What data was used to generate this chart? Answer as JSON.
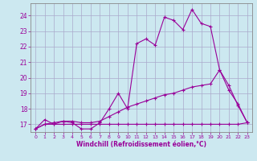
{
  "line1_x": [
    0,
    1,
    2,
    3,
    4,
    5,
    6,
    7,
    8,
    9,
    10,
    11,
    12,
    13,
    14,
    15,
    16,
    17,
    18,
    19,
    20,
    21,
    22,
    23
  ],
  "line1_y": [
    16.7,
    17.3,
    17.0,
    17.2,
    17.1,
    16.7,
    16.7,
    17.1,
    18.0,
    19.0,
    18.0,
    22.2,
    22.5,
    22.1,
    23.9,
    23.7,
    23.1,
    24.4,
    23.5,
    23.3,
    20.5,
    19.5,
    18.2,
    17.1
  ],
  "line2_x": [
    0,
    1,
    2,
    3,
    4,
    5,
    6,
    7,
    8,
    9,
    10,
    11,
    12,
    13,
    14,
    15,
    16,
    17,
    18,
    19,
    20,
    21,
    22,
    23
  ],
  "line2_y": [
    16.7,
    17.0,
    17.0,
    17.0,
    17.0,
    17.0,
    17.0,
    17.0,
    17.0,
    17.0,
    17.0,
    17.0,
    17.0,
    17.0,
    17.0,
    17.0,
    17.0,
    17.0,
    17.0,
    17.0,
    17.0,
    17.0,
    17.0,
    17.1
  ],
  "line3_x": [
    0,
    1,
    2,
    3,
    4,
    5,
    6,
    7,
    8,
    9,
    10,
    11,
    12,
    13,
    14,
    15,
    16,
    17,
    18,
    19,
    20,
    21,
    22,
    23
  ],
  "line3_y": [
    16.7,
    17.0,
    17.1,
    17.2,
    17.2,
    17.1,
    17.1,
    17.2,
    17.5,
    17.8,
    18.1,
    18.3,
    18.5,
    18.7,
    18.9,
    19.0,
    19.2,
    19.4,
    19.5,
    19.6,
    20.5,
    19.2,
    18.3,
    17.1
  ],
  "line_color": "#990099",
  "bg_color": "#cce8f0",
  "grid_color": "#aaaacc",
  "xlabel": "Windchill (Refroidissement éolien,°C)",
  "yticks": [
    17,
    18,
    19,
    20,
    21,
    22,
    23,
    24
  ],
  "xticks": [
    0,
    1,
    2,
    3,
    4,
    5,
    6,
    7,
    8,
    9,
    10,
    11,
    12,
    13,
    14,
    15,
    16,
    17,
    18,
    19,
    20,
    21,
    22,
    23
  ],
  "ylim": [
    16.5,
    24.8
  ],
  "xlim": [
    -0.5,
    23.5
  ]
}
